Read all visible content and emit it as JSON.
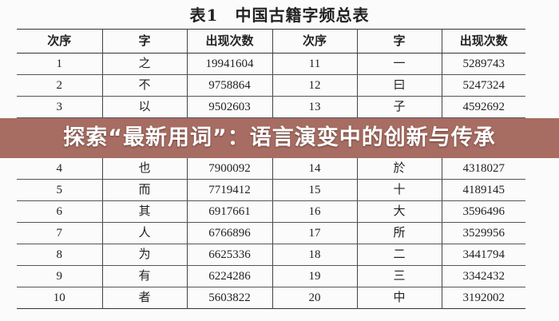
{
  "title": "表1　中国古籍字频总表",
  "headers": [
    "次序",
    "字",
    "出现次数",
    "次序",
    "字",
    "出现次数"
  ],
  "rows": [
    [
      "1",
      "之",
      "19941604",
      "11",
      "一",
      "5289743"
    ],
    [
      "2",
      "不",
      "9758864",
      "12",
      "曰",
      "5247324"
    ],
    [
      "3",
      "以",
      "9502603",
      "13",
      "子",
      "4592692"
    ],
    [
      "4",
      "也",
      "7900092",
      "14",
      "於",
      "4318027"
    ],
    [
      "5",
      "而",
      "7719412",
      "15",
      "十",
      "4189145"
    ],
    [
      "6",
      "其",
      "6917661",
      "16",
      "大",
      "3596496"
    ],
    [
      "7",
      "人",
      "6766896",
      "17",
      "所",
      "3529956"
    ],
    [
      "8",
      "为",
      "6625336",
      "18",
      "二",
      "3441794"
    ],
    [
      "9",
      "有",
      "6224286",
      "19",
      "三",
      "3342432"
    ],
    [
      "10",
      "者",
      "5603822",
      "20",
      "中",
      "3192002"
    ]
  ],
  "banner": {
    "text": "探索“最新用词”：语言演变中的创新与传承",
    "color": "#a05f55"
  }
}
